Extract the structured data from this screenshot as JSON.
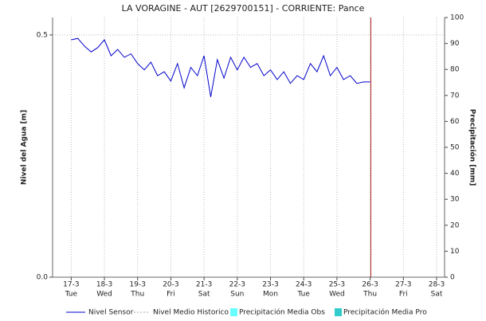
{
  "chart_data": {
    "type": "line",
    "title": "LA VORAGINE - AUT   [2629700151] - CORRIENTE: Pance",
    "y_label": "Nivel del Agua [m]",
    "y2_label": "Precipitación [mm]",
    "xlim": [
      16.44,
      28.24
    ],
    "xticks": [
      {
        "value": 17,
        "label": "17-3",
        "weekday": "Tue"
      },
      {
        "value": 18,
        "label": "18-3",
        "weekday": "Wed"
      },
      {
        "value": 19,
        "label": "19-3",
        "weekday": "Thu"
      },
      {
        "value": 20,
        "label": "20-3",
        "weekday": "Fri"
      },
      {
        "value": 21,
        "label": "21-3",
        "weekday": "Sat"
      },
      {
        "value": 22,
        "label": "22-3",
        "weekday": "Sun"
      },
      {
        "value": 23,
        "label": "23-3",
        "weekday": "Mon"
      },
      {
        "value": 24,
        "label": "24-3",
        "weekday": "Tue"
      },
      {
        "value": 25,
        "label": "25-3",
        "weekday": "Wed"
      },
      {
        "value": 26,
        "label": "26-3",
        "weekday": "Thu"
      },
      {
        "value": 27,
        "label": "27-3",
        "weekday": "Fri"
      },
      {
        "value": 28,
        "label": "28-3",
        "weekday": "Sat"
      }
    ],
    "ylim": [
      0,
      0.536
    ],
    "yticks": [
      {
        "value": 0,
        "label": "0.0"
      },
      0.5
    ],
    "y2lim": [
      0,
      100
    ],
    "y2ticks": [
      0,
      10,
      20,
      30,
      40,
      50,
      60,
      70,
      80,
      90,
      100
    ],
    "grid": true,
    "now_line": {
      "x": 26.02,
      "color": "#b22222"
    },
    "series": [
      {
        "name": "Nivel Sensor",
        "color": "#0000cc",
        "x": [
          17.0,
          17.2,
          17.4,
          17.6,
          17.8,
          18.0,
          18.2,
          18.4,
          18.6,
          18.8,
          19.0,
          19.2,
          19.4,
          19.6,
          19.8,
          20.0,
          20.2,
          20.4,
          20.6,
          20.8,
          21.0,
          21.2,
          21.4,
          21.6,
          21.8,
          22.0,
          22.2,
          22.4,
          22.6,
          22.8,
          23.0,
          23.2,
          23.4,
          23.6,
          23.8,
          24.0,
          24.2,
          24.4,
          24.6,
          24.8,
          25.0,
          25.2,
          25.4,
          25.6,
          25.8,
          26.0
        ],
        "values": [
          0.49,
          0.493,
          0.477,
          0.465,
          0.474,
          0.49,
          0.457,
          0.47,
          0.454,
          0.461,
          0.441,
          0.428,
          0.444,
          0.416,
          0.424,
          0.405,
          0.441,
          0.391,
          0.433,
          0.416,
          0.457,
          0.372,
          0.449,
          0.411,
          0.454,
          0.428,
          0.454,
          0.433,
          0.441,
          0.416,
          0.428,
          0.408,
          0.424,
          0.4,
          0.416,
          0.408,
          0.441,
          0.424,
          0.457,
          0.416,
          0.433,
          0.408,
          0.416,
          0.4,
          0.403,
          0.403
        ]
      }
    ],
    "legend": [
      {
        "name": "Nivel Sensor",
        "color": "#0000cc",
        "style": "line"
      },
      {
        "name": "Nivel Medio Historico",
        "color": "#aaaaaa",
        "style": "dotted"
      },
      {
        "name": "Precipitación Media Obs",
        "color": "#66ffff",
        "style": "box"
      },
      {
        "name": "Precipitación Media Pro",
        "color": "#33cccc",
        "style": "box"
      }
    ]
  }
}
